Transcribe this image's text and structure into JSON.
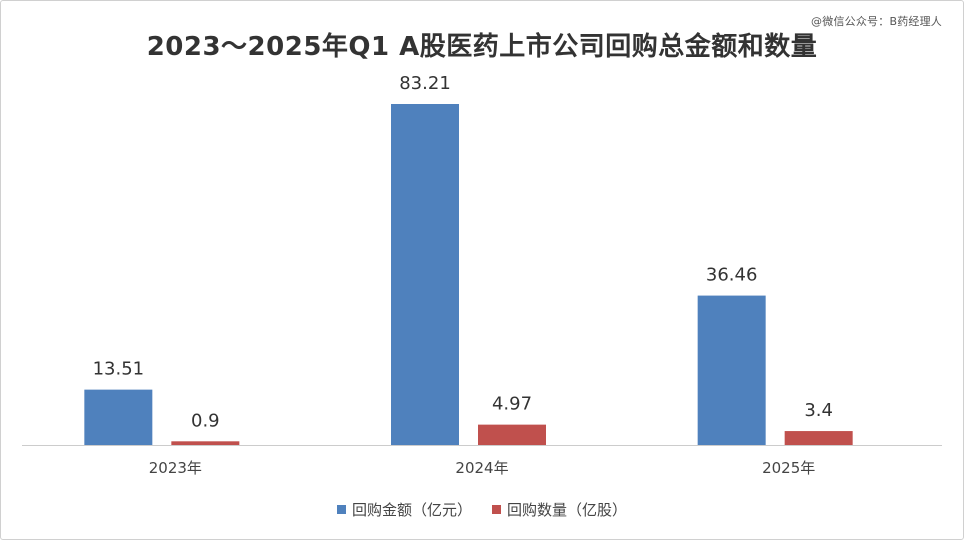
{
  "watermark": "@微信公众号：B药经理人",
  "colors": {
    "amount": "#4f81bd",
    "quantity": "#c0504d",
    "axis": "#cccccc",
    "label": "#333333"
  },
  "chart_data": {
    "type": "bar",
    "title": "2023～2025年Q1 A股医药上市公司回购总金额和数量",
    "categories": [
      "2023年",
      "2024年",
      "2025年"
    ],
    "series": [
      {
        "name": "回购金额（亿元）",
        "values": [
          13.51,
          83.21,
          36.46
        ],
        "labels": [
          "13.51",
          "83.21",
          "36.46"
        ],
        "color": "#4f81bd"
      },
      {
        "name": "回购数量（亿股）",
        "values": [
          0.9,
          4.97,
          3.4
        ],
        "labels": [
          "0.9",
          "4.97",
          "3.4"
        ],
        "color": "#c0504d"
      }
    ],
    "ylim": [
      0,
      83.21
    ],
    "grid": false,
    "legend": "bottom"
  }
}
